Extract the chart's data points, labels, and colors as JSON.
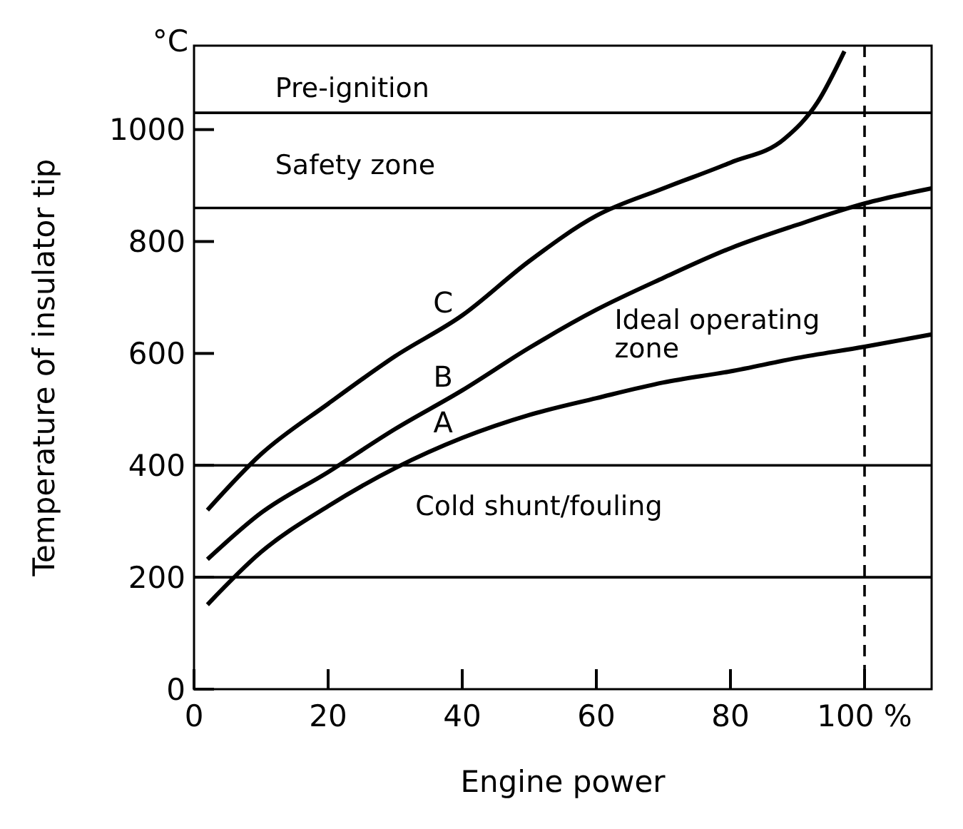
{
  "chart_data": {
    "type": "line",
    "xlabel": "Engine power",
    "ylabel": "Temperature of insulator tip",
    "annotations": [
      "°C",
      "Pre-ignition",
      "Safety zone",
      "Ideal operating zone",
      "Cold shunt/fouling"
    ],
    "xlim": [
      0,
      110
    ],
    "ylim": [
      0,
      1150
    ],
    "xticks": [
      0,
      20,
      40,
      60,
      80,
      {
        "value": 100,
        "label": "100 %"
      }
    ],
    "yticks": [
      0,
      200,
      400,
      600,
      800,
      1000
    ],
    "marker": "none",
    "line_style": "solid",
    "series": [
      {
        "name": "C",
        "color": "#000000",
        "x": [
          2,
          10,
          20,
          30,
          40,
          50,
          60,
          70,
          80,
          88,
          93,
          97
        ],
        "values": [
          320,
          420,
          510,
          595,
          668,
          765,
          846,
          895,
          941,
          983,
          1049,
          1140
        ]
      },
      {
        "name": "B",
        "color": "#000000",
        "x": [
          2,
          10,
          20,
          30,
          40,
          50,
          60,
          70,
          80,
          90,
          100,
          110
        ],
        "values": [
          232,
          315,
          388,
          465,
          534,
          610,
          678,
          735,
          788,
          830,
          868,
          895
        ]
      },
      {
        "name": "A",
        "color": "#000000",
        "x": [
          2,
          10,
          20,
          30,
          40,
          50,
          60,
          70,
          80,
          90,
          100,
          110
        ],
        "values": [
          151,
          245,
          327,
          395,
          449,
          490,
          520,
          548,
          568,
          592,
          612,
          634
        ]
      }
    ],
    "ref_lines": [
      {
        "axis": "x",
        "value": 100,
        "line_style": "dashed",
        "color": "#000000"
      },
      {
        "axis": "y",
        "value": 200,
        "line_style": "solid",
        "color": "#000000"
      },
      {
        "axis": "y",
        "value": 400,
        "line_style": "solid",
        "color": "#000000"
      },
      {
        "axis": "y",
        "value": 860,
        "line_style": "solid",
        "color": "#000000"
      },
      {
        "axis": "y",
        "value": 1030,
        "line_style": "solid",
        "color": "#000000"
      }
    ]
  }
}
